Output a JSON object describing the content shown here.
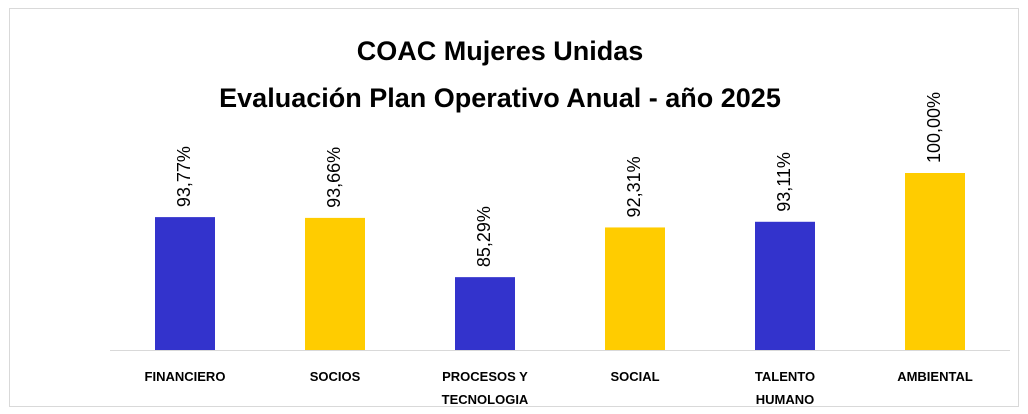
{
  "chart_data": {
    "type": "bar",
    "title": "COAC Mujeres Unidas",
    "subtitle": "Evaluación Plan Operativo Anual  - año 2025",
    "categories": [
      "FINANCIERO",
      "SOCIOS",
      "PROCESOS Y TECNOLOGIA",
      "SOCIAL",
      "TALENTO HUMANO",
      "AMBIENTAL"
    ],
    "values": [
      93.77,
      93.66,
      85.29,
      92.31,
      93.11,
      100
    ],
    "value_labels": [
      "93,77%",
      "93,66%",
      "85,29%",
      "92,31%",
      "93,11%",
      "100,00%"
    ],
    "colors": [
      "#3333cc",
      "#ffcc00",
      "#3333cc",
      "#ffcc00",
      "#3333cc",
      "#ffcc00"
    ],
    "ylim": [
      75,
      100
    ]
  }
}
